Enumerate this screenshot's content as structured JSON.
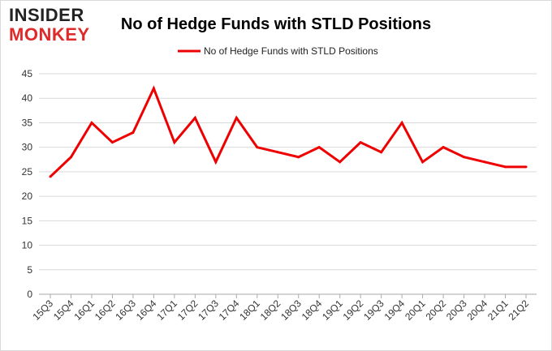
{
  "logo": {
    "line1": "INSIDER",
    "line2": "MONKEY",
    "color1": "#222222",
    "color2": "#e02a2a"
  },
  "chart_data": {
    "type": "line",
    "title": "No of Hedge Funds with STLD Positions",
    "xlabel": "",
    "ylabel": "",
    "ylim": [
      0,
      45
    ],
    "yticks": [
      0,
      5,
      10,
      15,
      20,
      25,
      30,
      35,
      40,
      45
    ],
    "grid": true,
    "legend_position": "top-center",
    "categories": [
      "15Q3",
      "15Q4",
      "16Q1",
      "16Q2",
      "16Q3",
      "16Q4",
      "17Q1",
      "17Q2",
      "17Q3",
      "17Q4",
      "18Q1",
      "18Q2",
      "18Q3",
      "18Q4",
      "19Q1",
      "19Q2",
      "19Q3",
      "19Q4",
      "20Q1",
      "20Q2",
      "20Q3",
      "20Q4",
      "21Q1",
      "21Q2"
    ],
    "series": [
      {
        "name": "No of Hedge Funds with STLD Positions",
        "color": "#ee0000",
        "values": [
          24,
          28,
          35,
          31,
          33,
          42,
          31,
          36,
          27,
          36,
          30,
          29,
          28,
          30,
          27,
          31,
          29,
          35,
          27,
          30,
          28,
          27,
          26,
          26
        ]
      }
    ]
  }
}
